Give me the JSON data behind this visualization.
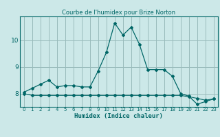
{
  "title": "Courbe de l'humidex pour Brize Norton",
  "xlabel": "Humidex (Indice chaleur)",
  "background_color": "#cce8e8",
  "grid_color": "#99bbbb",
  "line_color": "#006666",
  "x_values": [
    0,
    1,
    2,
    3,
    4,
    5,
    6,
    7,
    8,
    9,
    10,
    11,
    12,
    13,
    14,
    15,
    16,
    17,
    18,
    19,
    20,
    21,
    22,
    23
  ],
  "y_main": [
    8.05,
    8.2,
    8.35,
    8.5,
    8.25,
    8.3,
    8.3,
    8.25,
    8.25,
    8.85,
    9.55,
    10.65,
    10.2,
    10.5,
    9.85,
    8.9,
    8.9,
    8.9,
    8.65,
    8.0,
    7.9,
    7.6,
    7.7,
    7.8
  ],
  "y_flat": [
    8.0,
    7.93,
    7.93,
    7.93,
    7.93,
    7.93,
    7.93,
    7.93,
    7.93,
    7.93,
    7.93,
    7.93,
    7.93,
    7.93,
    7.93,
    7.93,
    7.93,
    7.93,
    7.93,
    7.93,
    7.88,
    7.82,
    7.75,
    7.8
  ],
  "ylim": [
    7.5,
    10.9
  ],
  "yticks": [
    8,
    9,
    10
  ],
  "xticks": [
    0,
    1,
    2,
    3,
    4,
    5,
    6,
    7,
    8,
    9,
    10,
    11,
    12,
    13,
    14,
    15,
    16,
    17,
    18,
    19,
    20,
    21,
    22,
    23
  ]
}
